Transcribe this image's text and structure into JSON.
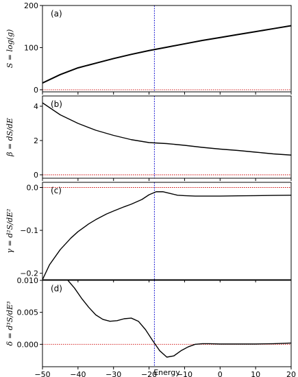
{
  "figure": {
    "xlabel": "Energy",
    "xlim": [
      -50,
      20
    ],
    "xticks": [
      -50,
      -40,
      -30,
      -20,
      -10,
      0,
      10,
      20
    ],
    "vline_x": -18.5,
    "colors": {
      "curve": "#000000",
      "vline": "#0000cc",
      "zero_line": "#cc0000"
    }
  },
  "chart_data": [
    {
      "type": "line",
      "panel_label": "(a)",
      "ylabel": "S = log(g)",
      "ylim": [
        -5,
        200
      ],
      "yticks": [
        0,
        100,
        200
      ],
      "zero_line": 0,
      "x": [
        -50,
        -45,
        -40,
        -35,
        -30,
        -25,
        -20,
        -15,
        -10,
        -5,
        0,
        5,
        10,
        15,
        20
      ],
      "values": [
        16,
        36,
        52,
        63,
        74,
        84,
        93,
        101,
        109,
        117,
        124,
        131,
        138,
        145,
        152
      ]
    },
    {
      "type": "line",
      "panel_label": "(b)",
      "ylabel": "β = dS/dE",
      "ylim": [
        -0.2,
        4.6
      ],
      "yticks": [
        0,
        2,
        4
      ],
      "zero_line": 0,
      "x": [
        -50,
        -45,
        -40,
        -35,
        -30,
        -25,
        -20,
        -15,
        -10,
        -5,
        0,
        5,
        10,
        15,
        20
      ],
      "values": [
        4.2,
        3.5,
        3.0,
        2.6,
        2.3,
        2.05,
        1.88,
        1.82,
        1.72,
        1.6,
        1.5,
        1.42,
        1.32,
        1.22,
        1.15
      ]
    },
    {
      "type": "line",
      "panel_label": "(c)",
      "ylabel": "γ = d²S/dE²",
      "ylim": [
        -0.215,
        0.012
      ],
      "yticks": [
        0.0,
        -0.1,
        -0.2
      ],
      "ytick_labels": [
        "0.0",
        "−0.1",
        "−0.2"
      ],
      "zero_line": 0,
      "x": [
        -50,
        -48,
        -45,
        -42,
        -40,
        -37,
        -35,
        -32,
        -30,
        -27,
        -25,
        -22,
        -20,
        -18,
        -16,
        -14,
        -12,
        -10,
        -7,
        -5,
        0,
        5,
        10,
        15,
        20
      ],
      "values": [
        -0.215,
        -0.18,
        -0.145,
        -0.118,
        -0.103,
        -0.085,
        -0.075,
        -0.062,
        -0.055,
        -0.045,
        -0.039,
        -0.028,
        -0.017,
        -0.01,
        -0.01,
        -0.014,
        -0.018,
        -0.019,
        -0.02,
        -0.02,
        -0.02,
        -0.0195,
        -0.019,
        -0.0185,
        -0.018
      ]
    },
    {
      "type": "line",
      "panel_label": "(d)",
      "ylabel": "δ = d³S/dE³",
      "ylim": [
        -0.0035,
        0.01
      ],
      "yticks": [
        0.0,
        0.005,
        0.01
      ],
      "ytick_labels": [
        "0.000",
        "0.005",
        "0.010"
      ],
      "zero_line": 0,
      "x": [
        -43,
        -41,
        -39,
        -37,
        -35,
        -33,
        -31,
        -29,
        -27,
        -25,
        -23,
        -21,
        -19,
        -17,
        -15,
        -13,
        -11,
        -9,
        -7,
        -5,
        -3,
        0,
        5,
        10,
        15,
        20
      ],
      "values": [
        0.0101,
        0.0088,
        0.0072,
        0.0058,
        0.0046,
        0.0039,
        0.0036,
        0.0037,
        0.004,
        0.0041,
        0.0036,
        0.0023,
        0.0006,
        -0.001,
        -0.002,
        -0.0018,
        -0.001,
        -0.0004,
        0.0,
        0.0001,
        0.0001,
        5e-05,
        5e-05,
        5e-05,
        0.0001,
        0.0002
      ]
    }
  ]
}
